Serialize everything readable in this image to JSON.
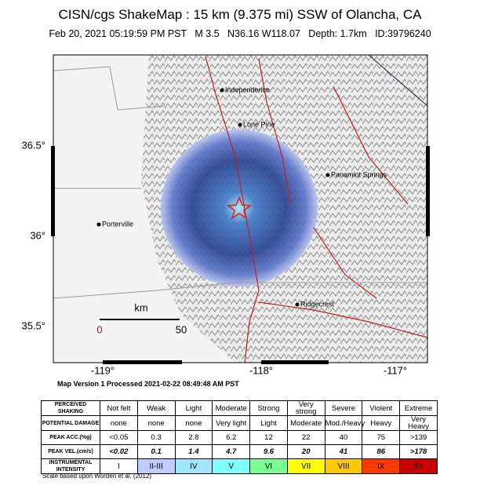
{
  "header": {
    "title": "CISN/cgs ShakeMap : 15 km (9.375 mi) SSW of Olancha, CA",
    "subtitle": "Feb 20, 2021 05:19:59 PM PST   M 3.5   N36.16 W118.07   Depth: 1.7km   ID:39796240"
  },
  "map": {
    "lat_labels": [
      "36.5°",
      "36°",
      "35.5°"
    ],
    "lon_labels": [
      "-119°",
      "-118°",
      "-117°"
    ],
    "places": [
      "Independence",
      "Lone Pine",
      "Panamint Springs",
      "Porterville",
      "Ridgecrest"
    ],
    "scale": {
      "unit": "km",
      "start": "0",
      "end": "50"
    }
  },
  "processed": "Map Version 1 Processed 2021-02-22 08:49:48 AM PST",
  "table": {
    "rows": [
      [
        "PERCEIVED SHAKING",
        "Not felt",
        "Weak",
        "Light",
        "Moderate",
        "Strong",
        "Very strong",
        "Severe",
        "Violent",
        "Extreme"
      ],
      [
        "POTENTIAL DAMAGE",
        "none",
        "none",
        "none",
        "Very light",
        "Light",
        "Moderate",
        "Mod./Heavy",
        "Heavy",
        "Very Heavy"
      ],
      [
        "PEAK ACC.(%g)",
        "<0.05",
        "0.3",
        "2.8",
        "6.2",
        "12",
        "22",
        "40",
        "75",
        ">139"
      ],
      [
        "PEAK VEL.(cm/s)",
        "<0.02",
        "0.1",
        "1.4",
        "4.7",
        "9.6",
        "20",
        "41",
        "86",
        ">178"
      ],
      [
        "INSTRUMENTAL INTENSITY",
        "I",
        "II-III",
        "IV",
        "V",
        "VI",
        "VII",
        "VIII",
        "IX",
        "X+"
      ]
    ]
  },
  "footnote": "Scale based upon Worden et al. (2012)"
}
